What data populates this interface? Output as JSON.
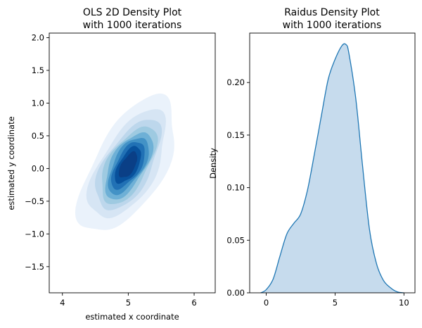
{
  "chart_data": [
    {
      "type": "kde2d",
      "title": [
        "OLS 2D Density Plot",
        "with 1000 iterations"
      ],
      "xlabel": "estimated x coordinate",
      "ylabel": "estimated y coordinate",
      "xlim": [
        3.8,
        6.32
      ],
      "ylim": [
        -1.9,
        2.07
      ],
      "xticks": [
        4,
        5,
        6
      ],
      "yticks": [
        -1.5,
        -1.0,
        -0.5,
        0.0,
        0.5,
        1.0,
        1.5,
        2.0
      ],
      "ytick_labels": [
        "−1.5",
        "−1.0",
        "−0.5",
        "0.0",
        "0.5",
        "1.0",
        "1.5",
        "2.0"
      ],
      "center": [
        5.0,
        0.05
      ],
      "sd": [
        0.29,
        0.41
      ],
      "correlation": 0.6,
      "levels": [
        0.04,
        0.13,
        0.24,
        0.35,
        0.46,
        0.57,
        0.68,
        0.79,
        0.89
      ],
      "colors": [
        "#eaf2fb",
        "#d6e5f4",
        "#bdd7ec",
        "#9ecae1",
        "#6eb0d6",
        "#4392c6",
        "#2171b5",
        "#08519c",
        "#0a3f86"
      ]
    },
    {
      "type": "kde",
      "title": [
        "Raidus Density Plot",
        "with 1000 iterations"
      ],
      "xlabel": "",
      "ylabel": "Density",
      "xlim": [
        -1.2,
        10.8
      ],
      "ylim": [
        0,
        0.247
      ],
      "xticks": [
        0,
        5,
        10
      ],
      "yticks": [
        0.0,
        0.05,
        0.1,
        0.15,
        0.2
      ],
      "ytick_labels": [
        "0.00",
        "0.05",
        "0.10",
        "0.15",
        "0.20"
      ],
      "x": [
        -0.4,
        0.0,
        0.5,
        1.0,
        1.5,
        2.0,
        2.5,
        3.0,
        3.5,
        4.0,
        4.5,
        5.0,
        5.5,
        5.8,
        6.0,
        6.5,
        7.0,
        7.5,
        8.0,
        8.5,
        9.0,
        9.5,
        10.0
      ],
      "y": [
        0.0,
        0.003,
        0.013,
        0.035,
        0.056,
        0.066,
        0.075,
        0.098,
        0.132,
        0.168,
        0.203,
        0.222,
        0.235,
        0.236,
        0.228,
        0.185,
        0.12,
        0.06,
        0.028,
        0.012,
        0.005,
        0.001,
        0.0
      ],
      "line_color": "#1f77b4",
      "fill_color": "#c6dbed"
    }
  ]
}
